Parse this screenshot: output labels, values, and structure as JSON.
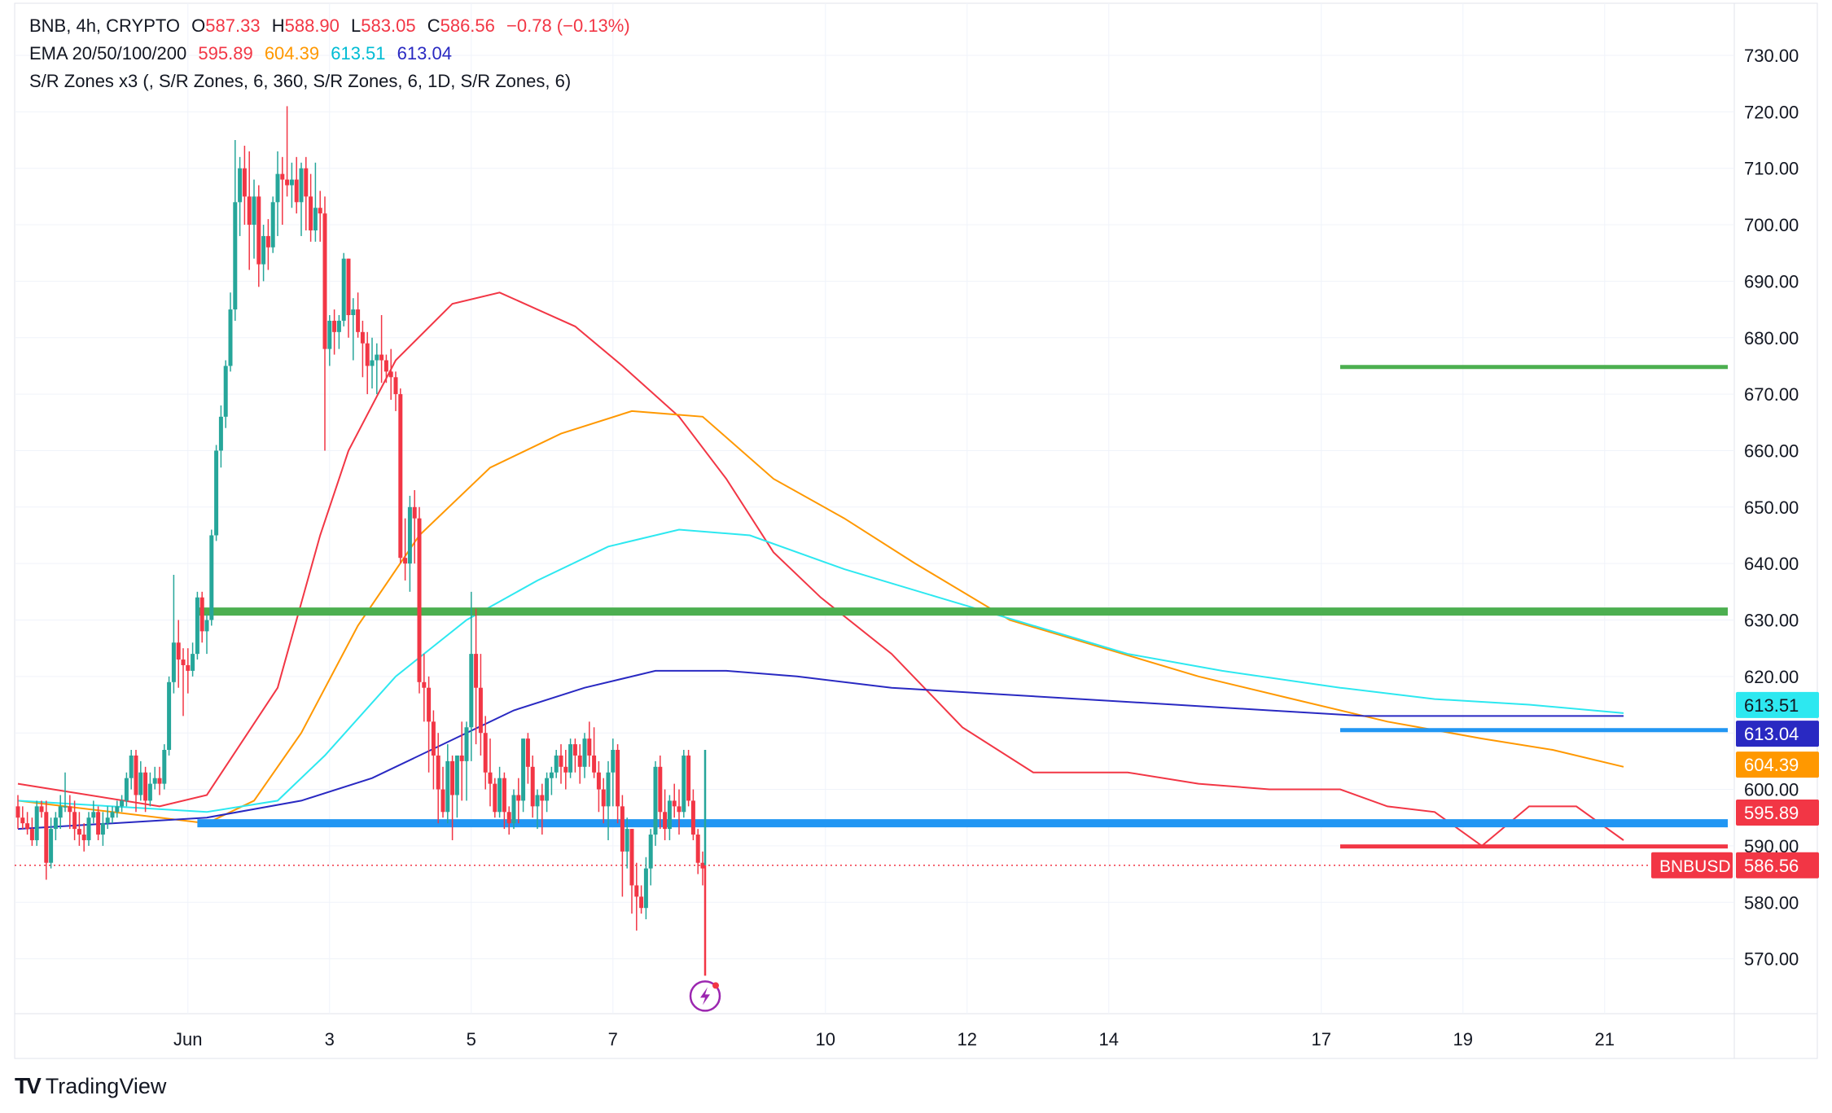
{
  "legend": {
    "symbol": "BNB, 4h, CRYPTO",
    "o_label": "O",
    "o_value": "587.33",
    "h_label": "H",
    "h_value": "588.90",
    "l_label": "L",
    "l_value": "583.05",
    "c_label": "C",
    "c_value": "586.56",
    "change": "−0.78 (−0.13%)",
    "ema_label": "EMA 20/50/100/200",
    "ema20": "595.89",
    "ema50": "604.39",
    "ema100": "613.51",
    "ema200": "613.04",
    "sr_label": "S/R Zones x3 (, S/R Zones, 6, 360, S/R Zones, 6, 1D, S/R Zones, 6)"
  },
  "branding": {
    "logo_text": "TradingView",
    "logo_icon": "tradingview-logo-icon"
  },
  "colors": {
    "up": "#26a69a",
    "down": "#f23645",
    "ema20": "#f23645",
    "ema50": "#ff9800",
    "ema100": "#2de8f0",
    "ema200": "#2929c2",
    "zone_green": "#4caf50",
    "zone_blue": "#2196f3",
    "zone_red": "#f23645",
    "price_tag": "#f23645"
  },
  "chart_data": {
    "type": "candlestick",
    "symbol": "BNBUSD",
    "timeframe": "4h",
    "ylim": [
      560,
      735
    ],
    "y_ticks": [
      "730.00",
      "720.00",
      "710.00",
      "700.00",
      "690.00",
      "680.00",
      "670.00",
      "660.00",
      "650.00",
      "640.00",
      "630.00",
      "620.00",
      "610.00",
      "600.00",
      "590.00",
      "580.00",
      "570.00"
    ],
    "x_ticks": [
      {
        "label": "Jun",
        "index": 36
      },
      {
        "label": "3",
        "index": 66
      },
      {
        "label": "5",
        "index": 96
      },
      {
        "label": "7",
        "index": 126
      },
      {
        "label": "10",
        "index": 171
      },
      {
        "label": "12",
        "index": 201
      },
      {
        "label": "14",
        "index": 231
      },
      {
        "label": "17",
        "index": 276
      },
      {
        "label": "19",
        "index": 306
      },
      {
        "label": "21",
        "index": 336
      }
    ],
    "candles": [
      [
        597,
        599,
        593,
        595
      ],
      [
        595,
        597,
        593,
        594
      ],
      [
        594,
        596,
        592,
        593
      ],
      [
        593,
        595,
        590,
        591
      ],
      [
        591,
        598,
        590,
        597
      ],
      [
        597,
        598,
        595,
        596
      ],
      [
        596,
        598,
        584,
        587
      ],
      [
        587,
        595,
        586,
        593
      ],
      [
        593,
        596,
        591,
        595
      ],
      [
        595,
        599,
        593,
        597
      ],
      [
        597,
        603,
        596,
        597
      ],
      [
        597,
        599,
        593,
        596
      ],
      [
        596,
        598,
        591,
        593
      ],
      [
        593,
        596,
        590,
        592
      ],
      [
        592,
        594,
        589,
        591
      ],
      [
        591,
        596,
        590,
        595
      ],
      [
        595,
        598,
        594,
        596
      ],
      [
        596,
        597,
        591,
        592
      ],
      [
        592,
        596,
        590,
        594
      ],
      [
        594,
        597,
        593,
        595
      ],
      [
        595,
        597,
        594,
        596
      ],
      [
        596,
        598,
        595,
        597
      ],
      [
        597,
        599,
        596,
        598
      ],
      [
        598,
        603,
        597,
        602
      ],
      [
        602,
        607,
        600,
        606
      ],
      [
        606,
        607,
        596,
        599
      ],
      [
        599,
        605,
        598,
        603
      ],
      [
        603,
        604,
        596,
        598
      ],
      [
        598,
        603,
        597,
        601
      ],
      [
        601,
        604,
        600,
        602
      ],
      [
        602,
        604,
        599,
        601
      ],
      [
        601,
        608,
        600,
        607
      ],
      [
        607,
        620,
        606,
        619
      ],
      [
        619,
        638,
        617,
        626
      ],
      [
        626,
        630,
        618,
        623
      ],
      [
        623,
        625,
        613,
        622
      ],
      [
        622,
        625,
        617,
        621
      ],
      [
        621,
        626,
        620,
        624
      ],
      [
        624,
        635,
        623,
        634
      ],
      [
        634,
        635,
        626,
        628
      ],
      [
        628,
        631,
        624,
        630
      ],
      [
        630,
        646,
        629,
        645
      ],
      [
        645,
        661,
        644,
        660
      ],
      [
        660,
        668,
        657,
        666
      ],
      [
        666,
        676,
        664,
        675
      ],
      [
        675,
        688,
        674,
        685
      ],
      [
        685,
        715,
        683,
        704
      ],
      [
        704,
        712,
        698,
        710
      ],
      [
        710,
        714,
        700,
        705
      ],
      [
        705,
        713,
        692,
        700
      ],
      [
        700,
        708,
        694,
        705
      ],
      [
        705,
        707,
        689,
        693
      ],
      [
        693,
        700,
        690,
        698
      ],
      [
        698,
        701,
        692,
        696
      ],
      [
        696,
        705,
        695,
        704
      ],
      [
        704,
        713,
        698,
        709
      ],
      [
        709,
        712,
        700,
        708
      ],
      [
        708,
        721,
        705,
        707
      ],
      [
        707,
        711,
        703,
        708
      ],
      [
        708,
        712,
        702,
        704
      ],
      [
        704,
        711,
        698,
        710
      ],
      [
        710,
        712,
        699,
        705
      ],
      [
        705,
        709,
        697,
        699
      ],
      [
        699,
        711,
        697,
        703
      ],
      [
        703,
        706,
        697,
        702
      ],
      [
        702,
        705,
        660,
        678
      ],
      [
        678,
        684,
        675,
        683
      ],
      [
        683,
        685,
        677,
        681
      ],
      [
        681,
        684,
        678,
        683
      ],
      [
        683,
        695,
        682,
        694
      ],
      [
        694,
        694,
        680,
        684
      ],
      [
        684,
        687,
        676,
        685
      ],
      [
        685,
        688,
        680,
        681
      ],
      [
        681,
        683,
        673,
        679
      ],
      [
        679,
        681,
        670,
        675
      ],
      [
        675,
        680,
        671,
        676
      ],
      [
        676,
        679,
        670,
        677
      ],
      [
        677,
        684,
        672,
        676
      ],
      [
        676,
        677,
        672,
        674
      ],
      [
        674,
        678,
        669,
        673
      ],
      [
        673,
        674,
        667,
        670
      ],
      [
        670,
        671,
        640,
        641
      ],
      [
        641,
        648,
        637,
        640
      ],
      [
        640,
        652,
        635,
        650
      ],
      [
        650,
        653,
        640,
        648
      ],
      [
        648,
        650,
        617,
        619
      ],
      [
        619,
        624,
        612,
        618
      ],
      [
        618,
        620,
        603,
        612
      ],
      [
        612,
        614,
        600,
        606
      ],
      [
        606,
        610,
        594,
        600
      ],
      [
        600,
        604,
        595,
        596
      ],
      [
        596,
        608,
        594,
        605
      ],
      [
        605,
        606,
        591,
        599
      ],
      [
        599,
        606,
        595,
        606
      ],
      [
        606,
        612,
        598,
        605
      ],
      [
        605,
        612,
        598,
        611
      ],
      [
        611,
        635,
        605,
        624
      ],
      [
        624,
        632,
        608,
        618
      ],
      [
        618,
        624,
        606,
        610
      ],
      [
        610,
        613,
        600,
        603
      ],
      [
        603,
        609,
        597,
        601
      ],
      [
        601,
        602,
        595,
        596
      ],
      [
        596,
        604,
        595,
        602
      ],
      [
        602,
        603,
        593,
        596
      ],
      [
        596,
        597,
        592,
        594
      ],
      [
        594,
        600,
        593,
        599
      ],
      [
        599,
        602,
        594,
        598
      ],
      [
        598,
        609,
        596,
        609
      ],
      [
        609,
        610,
        601,
        604
      ],
      [
        604,
        606,
        595,
        597
      ],
      [
        597,
        600,
        593,
        599
      ],
      [
        599,
        601,
        592,
        598
      ],
      [
        598,
        603,
        596,
        602
      ],
      [
        602,
        604,
        599,
        603
      ],
      [
        603,
        607,
        602,
        606
      ],
      [
        606,
        608,
        601,
        604
      ],
      [
        604,
        607,
        600,
        603
      ],
      [
        603,
        609,
        602,
        608
      ],
      [
        608,
        609,
        603,
        606
      ],
      [
        606,
        608,
        601,
        604
      ],
      [
        604,
        610,
        602,
        609
      ],
      [
        609,
        612,
        604,
        606
      ],
      [
        606,
        611,
        602,
        603
      ],
      [
        603,
        605,
        596,
        600
      ],
      [
        600,
        602,
        594,
        597
      ],
      [
        597,
        605,
        591,
        603
      ],
      [
        603,
        609,
        597,
        607
      ],
      [
        607,
        608,
        594,
        597
      ],
      [
        597,
        599,
        581,
        589
      ],
      [
        589,
        595,
        586,
        593
      ],
      [
        593,
        593,
        578,
        583
      ],
      [
        583,
        587,
        575,
        581
      ],
      [
        581,
        583,
        578,
        579
      ],
      [
        579,
        588,
        577,
        586
      ],
      [
        586,
        593,
        583,
        592
      ],
      [
        592,
        605,
        590,
        604
      ],
      [
        604,
        606,
        593,
        596
      ],
      [
        596,
        600,
        591,
        593
      ],
      [
        593,
        599,
        591,
        598
      ],
      [
        598,
        601,
        595,
        597
      ],
      [
        597,
        600,
        592,
        596
      ],
      [
        596,
        607,
        595,
        606
      ],
      [
        606,
        607,
        597,
        598
      ],
      [
        598,
        600,
        591,
        592
      ],
      [
        592,
        593,
        585,
        587
      ],
      [
        587,
        589,
        583,
        586
      ]
    ],
    "ema": [
      {
        "name": "EMA 20",
        "points": [
          [
            0,
            601
          ],
          [
            30,
            597
          ],
          [
            40,
            599
          ],
          [
            55,
            618
          ],
          [
            64,
            645
          ],
          [
            70,
            660
          ],
          [
            80,
            676
          ],
          [
            92,
            686
          ],
          [
            102,
            688
          ],
          [
            118,
            682
          ],
          [
            128,
            675
          ],
          [
            140,
            666
          ],
          [
            150,
            655
          ],
          [
            160,
            642
          ],
          [
            170,
            634
          ],
          [
            185,
            624
          ],
          [
            200,
            611
          ],
          [
            215,
            603
          ],
          [
            235,
            603
          ],
          [
            250,
            601
          ],
          [
            265,
            600
          ],
          [
            280,
            600
          ],
          [
            290,
            597
          ],
          [
            300,
            596
          ],
          [
            310,
            590
          ],
          [
            320,
            597
          ],
          [
            330,
            597
          ],
          [
            340,
            591
          ]
        ]
      },
      {
        "name": "EMA 50",
        "points": [
          [
            0,
            598
          ],
          [
            20,
            596
          ],
          [
            40,
            594
          ],
          [
            50,
            598
          ],
          [
            60,
            610
          ],
          [
            72,
            629
          ],
          [
            85,
            645
          ],
          [
            100,
            657
          ],
          [
            115,
            663
          ],
          [
            130,
            667
          ],
          [
            145,
            666
          ],
          [
            160,
            655
          ],
          [
            175,
            648
          ],
          [
            190,
            640
          ],
          [
            210,
            630
          ],
          [
            230,
            625
          ],
          [
            250,
            620
          ],
          [
            270,
            616
          ],
          [
            290,
            612
          ],
          [
            310,
            609
          ],
          [
            325,
            607
          ],
          [
            340,
            604
          ]
        ]
      },
      {
        "name": "EMA 100",
        "points": [
          [
            0,
            598
          ],
          [
            20,
            597
          ],
          [
            40,
            596
          ],
          [
            55,
            598
          ],
          [
            65,
            606
          ],
          [
            80,
            620
          ],
          [
            95,
            630
          ],
          [
            110,
            637
          ],
          [
            125,
            643
          ],
          [
            140,
            646
          ],
          [
            155,
            645
          ],
          [
            175,
            639
          ],
          [
            195,
            634
          ],
          [
            215,
            629
          ],
          [
            235,
            624
          ],
          [
            255,
            621
          ],
          [
            280,
            618
          ],
          [
            300,
            616
          ],
          [
            320,
            615
          ],
          [
            340,
            613.5
          ]
        ]
      },
      {
        "name": "EMA 200",
        "points": [
          [
            0,
            593
          ],
          [
            20,
            594
          ],
          [
            40,
            595
          ],
          [
            60,
            598
          ],
          [
            75,
            602
          ],
          [
            90,
            608
          ],
          [
            105,
            614
          ],
          [
            120,
            618
          ],
          [
            135,
            621
          ],
          [
            150,
            621
          ],
          [
            165,
            620
          ],
          [
            185,
            618
          ],
          [
            205,
            617
          ],
          [
            225,
            616
          ],
          [
            245,
            615
          ],
          [
            265,
            614
          ],
          [
            285,
            613
          ],
          [
            305,
            613
          ],
          [
            325,
            613
          ],
          [
            340,
            613
          ]
        ]
      }
    ],
    "sr_zones": [
      {
        "color": "green",
        "price": 631.5,
        "from_index": 38,
        "thick": true
      },
      {
        "color": "green",
        "price": 674.8,
        "from_index": 280,
        "thick": false
      },
      {
        "color": "blue",
        "price": 594.0,
        "from_index": 38,
        "thick": true
      },
      {
        "color": "blue",
        "price": 610.5,
        "from_index": 280,
        "thick": false
      },
      {
        "color": "red",
        "price": 589.9,
        "from_index": 280,
        "thick": false
      }
    ],
    "last_bar_extension": {
      "high": 607,
      "low": 567
    },
    "price_labels": [
      {
        "text": "613.51",
        "value": 613.51,
        "series": "EMA 100"
      },
      {
        "text": "613.04",
        "value": 613.04,
        "series": "EMA 200"
      },
      {
        "text": "604.39",
        "value": 604.39,
        "series": "EMA 50"
      },
      {
        "text": "595.89",
        "value": 595.89,
        "series": "EMA 20"
      },
      {
        "text": "586.56",
        "value": 586.56,
        "series": "last",
        "tag": "BNBUSD"
      }
    ],
    "last_price": 586.56,
    "alert_icon": "lightning-alert-icon"
  }
}
